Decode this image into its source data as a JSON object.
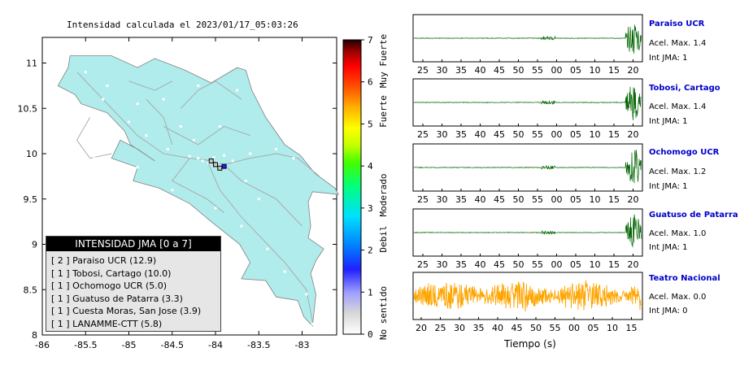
{
  "map": {
    "title": "Intensidad calculada el 2023/01/17_05:03:26",
    "x_ticks": [
      "-86",
      "-85.5",
      "-85",
      "-84.5",
      "-84",
      "-83.5",
      "-83"
    ],
    "y_ticks": [
      "11",
      "10.5",
      "10",
      "9.5",
      "9",
      "8.5",
      "8"
    ],
    "colors": {
      "land": "#b0eceb",
      "roads": "#a6a6a6",
      "stations": "#ffffff",
      "sea": "#ffffff"
    }
  },
  "colorbar": {
    "ticks": [
      "0",
      "1",
      "2",
      "3",
      "4",
      "5",
      "6",
      "7"
    ],
    "categories": [
      "No sentido",
      "Debil",
      "Moderado",
      "Fuerte",
      "Muy Fuerte"
    ]
  },
  "legend": {
    "title": "INTENSIDAD JMA [0 a 7]",
    "items": [
      "[ 2 ]  Paraiso UCR (12.9)",
      "[ 1 ]  Tobosi, Cartago (10.0)",
      "[ 1 ]  Ochomogo UCR (5.0)",
      "[ 1 ]  Guatuso de Patarra (3.3)",
      "[ 1 ]  Cuesta Moras, San Jose (3.9)",
      "[ 1 ]  LANAMME-CTT (5.8)"
    ]
  },
  "stations": [
    {
      "name": "Paraiso UCR",
      "accel": "Acel. Max. 1.4",
      "jma": "Int JMA: 1",
      "color": "#006400"
    },
    {
      "name": "Tobosi, Cartago",
      "accel": "Acel. Max. 1.4",
      "jma": "Int JMA: 1",
      "color": "#006400"
    },
    {
      "name": "Ochomogo UCR",
      "accel": "Acel. Max. 1.2",
      "jma": "Int JMA: 1",
      "color": "#006400"
    },
    {
      "name": "Guatuso de Patarra",
      "accel": "Acel. Max. 1.0",
      "jma": "Int JMA: 1",
      "color": "#006400"
    },
    {
      "name": "Teatro Nacional",
      "accel": "Acel. Max. 0.0",
      "jma": "Int JMA: 0",
      "color": "#ffa500"
    }
  ],
  "time_ticks": [
    "25",
    "30",
    "35",
    "40",
    "45",
    "50",
    "55",
    "00",
    "05",
    "10",
    "15",
    "20"
  ],
  "time_ticks_last": [
    "20",
    "25",
    "30",
    "35",
    "40",
    "45",
    "50",
    "55",
    "00",
    "05",
    "10",
    "15"
  ],
  "time_label": "Tiempo (s)",
  "chart_data": {
    "type": "heatmap",
    "title": "Intensidad calculada el 2023/01/17_05:03:26",
    "xlim": [
      -86,
      -82.6
    ],
    "ylim": [
      8,
      11.3
    ],
    "legend_placement": "bottom-left",
    "jma_intensities": [
      {
        "station": "Paraiso UCR",
        "intensity": 2,
        "value": 12.9
      },
      {
        "station": "Tobosi, Cartago",
        "intensity": 1,
        "value": 10.0
      },
      {
        "station": "Ochomogo UCR",
        "intensity": 1,
        "value": 5.0
      },
      {
        "station": "Guatuso de Patarra",
        "intensity": 1,
        "value": 3.3
      },
      {
        "station": "Cuesta Moras, San Jose",
        "intensity": 1,
        "value": 3.9
      },
      {
        "station": "LANAMME-CTT",
        "intensity": 1,
        "value": 5.8
      }
    ],
    "marked_cells": [
      {
        "lon": -84.05,
        "lat": 9.92,
        "intensity": 1
      },
      {
        "lon": -84.0,
        "lat": 9.88,
        "intensity": 1
      },
      {
        "lon": -83.95,
        "lat": 9.84,
        "intensity": 1
      },
      {
        "lon": -83.9,
        "lat": 9.86,
        "intensity": 2
      }
    ]
  }
}
